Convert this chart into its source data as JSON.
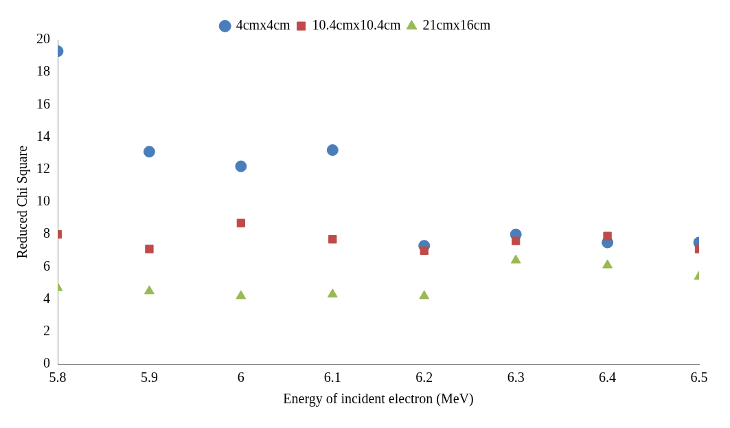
{
  "chart_data": {
    "type": "scatter",
    "xlabel": "Energy of incident electron (MeV)",
    "ylabel": "Reduced Chi Square",
    "x": [
      5.8,
      5.9,
      6.0,
      6.1,
      6.2,
      6.3,
      6.4,
      6.5
    ],
    "xlim": [
      5.8,
      6.5
    ],
    "xticks": [
      5.8,
      5.9,
      {
        "value": 6.0,
        "label": "6"
      },
      6.1,
      6.2,
      6.3,
      6.4,
      6.5
    ],
    "ylim": [
      0,
      20
    ],
    "yticks": [
      0,
      2,
      4,
      6,
      8,
      10,
      12,
      14,
      16,
      18,
      20
    ],
    "grid": false,
    "legend": "top",
    "series": [
      {
        "name": "4cmx4cm",
        "color": "#4a7ebb",
        "marker": "circle",
        "values": [
          19.3,
          13.1,
          12.2,
          13.2,
          7.3,
          8.0,
          7.5,
          7.5
        ]
      },
      {
        "name": "10.4cmx10.4cm",
        "color": "#be4b48",
        "marker": "square",
        "values": [
          8.0,
          7.1,
          8.7,
          7.7,
          7.0,
          7.6,
          7.9,
          7.1
        ]
      },
      {
        "name": "21cmx16cm",
        "color": "#98b954",
        "marker": "triangle",
        "values": [
          4.7,
          4.5,
          4.2,
          4.3,
          4.2,
          6.4,
          6.1,
          5.4
        ]
      }
    ]
  }
}
